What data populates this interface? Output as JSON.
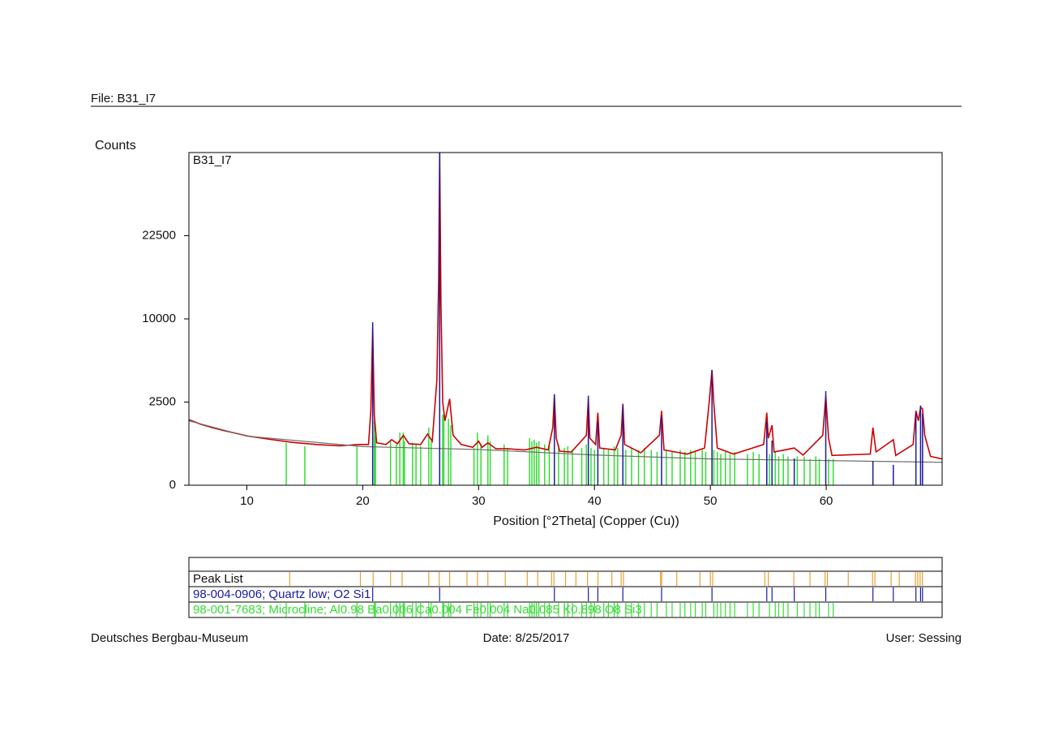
{
  "header": {
    "file": "File: B31_I7"
  },
  "chart_data": {
    "type": "line",
    "title": "B31_I7",
    "ylabel": "Counts",
    "xlabel": "Position [°2Theta] (Copper (Cu))",
    "xlim": [
      5,
      70
    ],
    "xticks": [
      10,
      20,
      30,
      40,
      50,
      60
    ],
    "ylim": [
      0,
      40000
    ],
    "yscale": "sqrt",
    "yticks": [
      0,
      2500,
      10000,
      22500
    ],
    "series": [
      {
        "color": "#cc0000",
        "x": [
          5,
          6,
          7,
          8,
          9,
          10,
          12,
          14,
          16,
          18,
          19.6,
          20.5,
          20.7,
          20.86,
          21.0,
          21.2,
          22.0,
          22.5,
          23.0,
          23.5,
          24.0,
          25.0,
          25.6,
          26.0,
          26.4,
          26.55,
          26.64,
          26.75,
          26.9,
          27.1,
          27.5,
          27.8,
          28.5,
          29.5,
          30.0,
          30.3,
          30.8,
          31.5,
          32.5,
          34.0,
          35.0,
          36.0,
          36.4,
          36.54,
          36.7,
          37.0,
          38.0,
          39.3,
          39.47,
          39.6,
          40.1,
          40.29,
          40.45,
          41.8,
          42.3,
          42.45,
          42.6,
          44,
          45.6,
          45.79,
          46,
          48,
          49.5,
          49.9,
          50.14,
          50.3,
          50.6,
          52,
          54.6,
          54.87,
          55.0,
          55.32,
          55.5,
          57.24,
          58,
          59.7,
          59.96,
          60.2,
          60.5,
          63.8,
          64.03,
          64.3,
          65.79,
          66,
          67.5,
          67.74,
          67.95,
          68.14,
          68.31,
          68.5,
          69,
          70
        ],
        "values": [
          1550,
          1350,
          1200,
          1080,
          980,
          880,
          760,
          660,
          600,
          560,
          600,
          600,
          2000,
          9000,
          1800,
          650,
          600,
          750,
          620,
          900,
          620,
          600,
          950,
          700,
          4000,
          15000,
          40000,
          12000,
          2500,
          1500,
          2700,
          900,
          600,
          520,
          700,
          520,
          650,
          480,
          480,
          450,
          520,
          450,
          1200,
          2900,
          800,
          420,
          400,
          900,
          2700,
          800,
          600,
          1900,
          500,
          450,
          900,
          2400,
          600,
          380,
          900,
          2000,
          450,
          350,
          500,
          2500,
          4800,
          2400,
          500,
          350,
          600,
          1900,
          800,
          1300,
          400,
          500,
          330,
          900,
          2900,
          800,
          320,
          350,
          1200,
          400,
          750,
          320,
          600,
          2000,
          1500,
          2200,
          2100,
          900,
          300,
          250
        ]
      },
      {
        "color": "#707070",
        "x": [
          5,
          10,
          20,
          30,
          40,
          50,
          60,
          70
        ],
        "values": [
          1500,
          870,
          540,
          460,
          330,
          250,
          220,
          190
        ]
      }
    ],
    "references": [
      {
        "name": "Peak List",
        "color": "#e8a030",
        "x": [
          13.7,
          19.8,
          20.9,
          22.4,
          23.4,
          25.7,
          26.6,
          27.5,
          29.0,
          29.9,
          30.8,
          32.3,
          34.2,
          35.1,
          36.3,
          36.5,
          37.5,
          38.4,
          39.4,
          40.3,
          41.5,
          42.3,
          42.5,
          45.7,
          45.8,
          47.1,
          49.1,
          50.0,
          50.2,
          54.7,
          55.0,
          57.2,
          58.6,
          59.9,
          60.1,
          61.9,
          64.0,
          64.2,
          65.6,
          66.3,
          67.7,
          67.9,
          68.1,
          68.3
        ]
      },
      {
        "name": "98-004-0906; Quartz low; O2 Si1",
        "color": "#1a1aa0",
        "x": [
          20.86,
          26.64,
          36.54,
          39.47,
          40.29,
          42.45,
          45.79,
          50.14,
          54.87,
          55.32,
          57.24,
          59.96,
          64.03,
          65.79,
          67.74,
          68.14,
          68.31
        ],
        "values": [
          9600,
          40000,
          3000,
          2900,
          1450,
          2300,
          1700,
          4800,
          1450,
          720,
          260,
          3200,
          210,
          150,
          1900,
          2300,
          1850
        ]
      },
      {
        "name": "98-001-7683; Microcline; Al0.98 Ba0.006 Ca0.004 Fe0.004 Na0.085 K0.898 O8 Si3",
        "color": "#33dd33",
        "x": [
          13.4,
          15.0,
          19.5,
          21.0,
          21.1,
          22.4,
          22.9,
          23.2,
          23.5,
          23.6,
          24.3,
          24.6,
          25.0,
          25.7,
          25.9,
          26.9,
          27.0,
          27.4,
          27.6,
          29.6,
          29.9,
          30.2,
          30.8,
          31.0,
          32.2,
          32.5,
          34.4,
          34.6,
          34.8,
          35.0,
          35.2,
          35.7,
          36.1,
          36.9,
          37.4,
          37.7,
          38.1,
          38.9,
          39.3,
          39.7,
          40.0,
          40.8,
          41.2,
          41.7,
          42.0,
          42.7,
          43.2,
          43.8,
          44.3,
          44.9,
          45.4,
          46.2,
          46.7,
          47.4,
          47.8,
          48.3,
          48.7,
          49.3,
          49.6,
          50.3,
          50.6,
          50.9,
          51.3,
          51.7,
          52.1,
          53.2,
          53.7,
          54.2,
          55.1,
          55.6,
          55.9,
          56.3,
          56.7,
          57.5,
          58.1,
          58.6,
          59.1,
          59.4,
          60.2,
          60.6
        ],
        "values": [
          650,
          550,
          550,
          1500,
          900,
          700,
          600,
          1000,
          1000,
          700,
          650,
          600,
          550,
          1200,
          700,
          1800,
          1900,
          1600,
          1300,
          500,
          1000,
          600,
          900,
          700,
          600,
          500,
          800,
          700,
          750,
          650,
          700,
          600,
          550,
          600,
          500,
          550,
          450,
          500,
          600,
          500,
          450,
          500,
          450,
          550,
          500,
          450,
          500,
          450,
          500,
          450,
          400,
          450,
          400,
          450,
          400,
          450,
          400,
          450,
          400,
          450,
          400,
          350,
          400,
          350,
          400,
          350,
          400,
          350,
          350,
          400,
          300,
          350,
          300,
          300,
          300,
          250,
          300,
          250,
          250,
          250
        ]
      }
    ]
  },
  "footer": {
    "left": "Deutsches Bergbau-Museum",
    "center": "Date: 8/25/2017",
    "right": "User: Sessing"
  }
}
